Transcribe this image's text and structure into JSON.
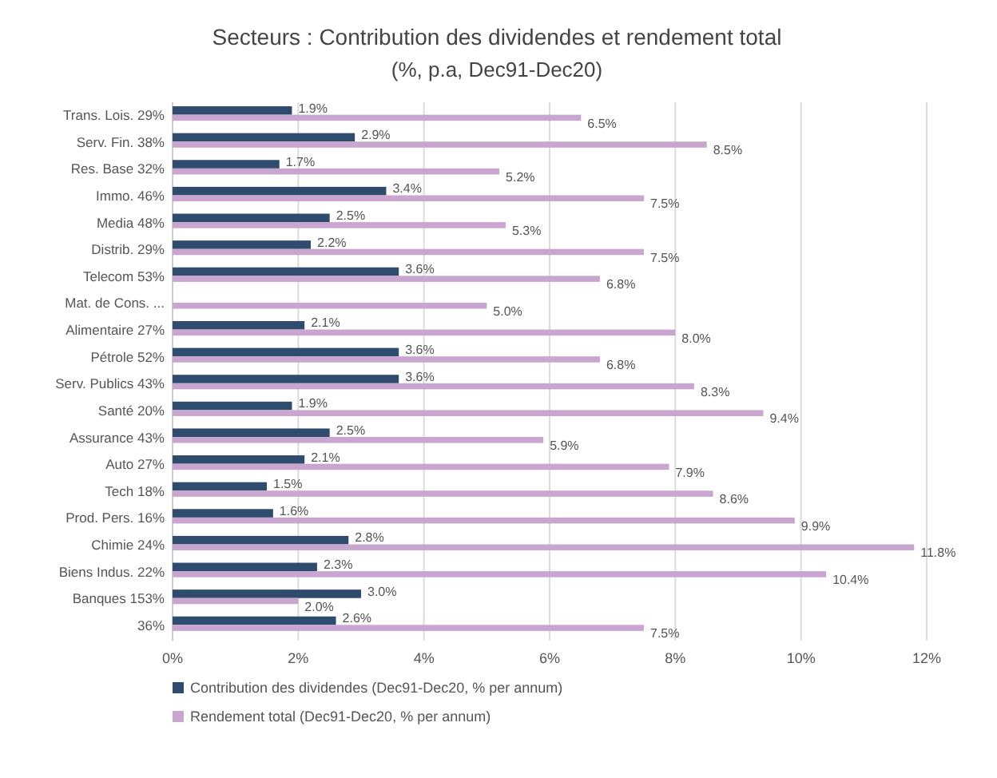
{
  "chart_data": {
    "type": "bar",
    "orientation": "horizontal",
    "title": "Secteurs : Contribution des dividendes et rendement total",
    "subtitle": "(%, p.a, Dec91-Dec20)",
    "categories": [
      "Trans. Lois. 29%",
      "Serv. Fin. 38%",
      "Res. Base 32%",
      "Immo. 46%",
      "Media 48%",
      "Distrib. 29%",
      "Telecom 53%",
      "Mat. de Cons. ...",
      "Alimentaire 27%",
      "Pétrole 52%",
      "Serv. Publics 43%",
      "Santé 20%",
      "Assurance 43%",
      "Auto 27%",
      "Tech 18%",
      "Prod. Pers. 16%",
      "Chimie 24%",
      "Biens Indus. 22%",
      "Banques 153%",
      "36%"
    ],
    "series": [
      {
        "name": "Contribution des dividendes (Dec91-Dec20, % per annum)",
        "color": "#2f4b6e",
        "values": [
          1.9,
          2.9,
          1.7,
          3.4,
          2.5,
          2.2,
          3.6,
          null,
          2.1,
          3.6,
          3.6,
          1.9,
          2.5,
          2.1,
          1.5,
          1.6,
          2.8,
          2.3,
          3.0,
          2.6
        ],
        "value_labels": [
          "1.9%",
          "2.9%",
          "1.7%",
          "3.4%",
          "2.5%",
          "2.2%",
          "3.6%",
          null,
          "2.1%",
          "3.6%",
          "3.6%",
          "1.9%",
          "2.5%",
          "2.1%",
          "1.5%",
          "1.6%",
          "2.8%",
          "2.3%",
          "3.0%",
          "2.6%"
        ]
      },
      {
        "name": "Rendement total (Dec91-Dec20, % per annum)",
        "color": "#c9a6cf",
        "values": [
          6.5,
          8.5,
          5.2,
          7.5,
          5.3,
          7.5,
          6.8,
          5.0,
          8.0,
          6.8,
          8.3,
          9.4,
          5.9,
          7.9,
          8.6,
          9.9,
          11.8,
          10.4,
          2.0,
          7.5
        ],
        "value_labels": [
          "6.5%",
          "8.5%",
          "5.2%",
          "7.5%",
          "5.3%",
          "7.5%",
          "6.8%",
          "5.0%",
          "8.0%",
          "6.8%",
          "8.3%",
          "9.4%",
          "5.9%",
          "7.9%",
          "8.6%",
          "9.9%",
          "11.8%",
          "10.4%",
          "2.0%",
          "7.5%"
        ]
      }
    ],
    "xlim": [
      0,
      12
    ],
    "xticks": [
      {
        "value": 0,
        "label": "0%"
      },
      {
        "value": 2,
        "label": "2%"
      },
      {
        "value": 4,
        "label": "4%"
      },
      {
        "value": 6,
        "label": "6%"
      },
      {
        "value": 8,
        "label": "8%"
      },
      {
        "value": 10,
        "label": "10%"
      },
      {
        "value": 12,
        "label": "12%"
      }
    ],
    "grid": "x",
    "legend": "bottom"
  }
}
